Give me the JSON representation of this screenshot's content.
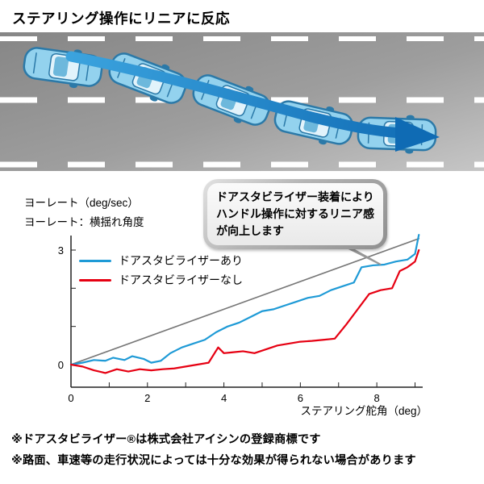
{
  "title": "ステアリング操作にリニアに反応",
  "road": {
    "description": "lane-change-sequence",
    "car_icon": "car-top-view",
    "car_count": 5,
    "arrow_color": "#1d7dc6",
    "road_color": "#9e9e9e",
    "lane_marking_color": "#ffffff"
  },
  "chart": {
    "ylabel_line1": "ヨーレート（deg/sec）",
    "ylabel_line2": "ヨーレート：横揺れ角度",
    "xlabel": "ステアリング舵角（deg）",
    "legend": [
      {
        "label": "ドアスタビライザーあり",
        "color": "#1e9ad6"
      },
      {
        "label": "ドアスタビライザーなし",
        "color": "#e60012"
      }
    ]
  },
  "callout": {
    "lines": [
      "ドアスタビライザー装着により",
      "ハンドル操作に対するリニア感",
      "が向上します"
    ]
  },
  "footnotes": [
    "※ドアスタビライザー®は株式会社アイシンの登録商標です",
    "※路面、車速等の走行状況によっては十分な効果が得られない場合があります"
  ],
  "chart_data": {
    "type": "line",
    "title": "",
    "xlabel": "ステアリング舵角（deg）",
    "ylabel": "ヨーレート（deg/sec）",
    "xlim": [
      0,
      9.2
    ],
    "ylim": [
      -0.6,
      3.5
    ],
    "xticks": [
      0,
      2,
      4,
      6,
      8
    ],
    "yticks": [
      0,
      3
    ],
    "grid": false,
    "legend_position": "upper-left-inside",
    "series": [
      {
        "name": "リニア基準線",
        "color": "#777777",
        "width": 1.6,
        "x": [
          0,
          9.1
        ],
        "y": [
          0,
          3.3
        ]
      },
      {
        "name": "ドアスタビライザーあり",
        "color": "#1e9ad6",
        "width": 2.2,
        "x": [
          0,
          0.3,
          0.6,
          0.9,
          1.1,
          1.4,
          1.6,
          1.9,
          2.1,
          2.35,
          2.6,
          2.9,
          3.2,
          3.5,
          3.8,
          4.1,
          4.4,
          4.7,
          5.0,
          5.3,
          5.6,
          5.9,
          6.2,
          6.5,
          6.8,
          7.1,
          7.4,
          7.6,
          7.9,
          8.2,
          8.5,
          8.8,
          9.0,
          9.1
        ],
        "y": [
          0,
          0.05,
          0.12,
          0.1,
          0.18,
          0.12,
          0.22,
          0.15,
          0.05,
          0.1,
          0.3,
          0.45,
          0.55,
          0.65,
          0.85,
          1.0,
          1.1,
          1.25,
          1.4,
          1.45,
          1.55,
          1.65,
          1.75,
          1.8,
          1.95,
          2.05,
          2.15,
          2.55,
          2.6,
          2.62,
          2.7,
          2.75,
          2.9,
          3.4
        ]
      },
      {
        "name": "ドアスタビライザーなし",
        "color": "#e60012",
        "width": 2.2,
        "x": [
          0,
          0.3,
          0.6,
          0.9,
          1.2,
          1.5,
          1.8,
          2.1,
          2.4,
          2.7,
          3.0,
          3.3,
          3.6,
          3.85,
          4.0,
          4.2,
          4.5,
          4.8,
          5.1,
          5.4,
          5.7,
          6.0,
          6.3,
          6.6,
          6.9,
          7.2,
          7.5,
          7.8,
          8.1,
          8.4,
          8.6,
          8.8,
          9.0,
          9.1
        ],
        "y": [
          0,
          -0.05,
          -0.15,
          -0.22,
          -0.12,
          -0.18,
          -0.12,
          -0.15,
          -0.12,
          -0.1,
          -0.05,
          0.0,
          0.05,
          0.45,
          0.3,
          0.32,
          0.35,
          0.3,
          0.4,
          0.5,
          0.55,
          0.6,
          0.62,
          0.65,
          0.68,
          1.05,
          1.45,
          1.85,
          1.95,
          2.0,
          2.45,
          2.55,
          2.7,
          3.0
        ]
      }
    ]
  }
}
